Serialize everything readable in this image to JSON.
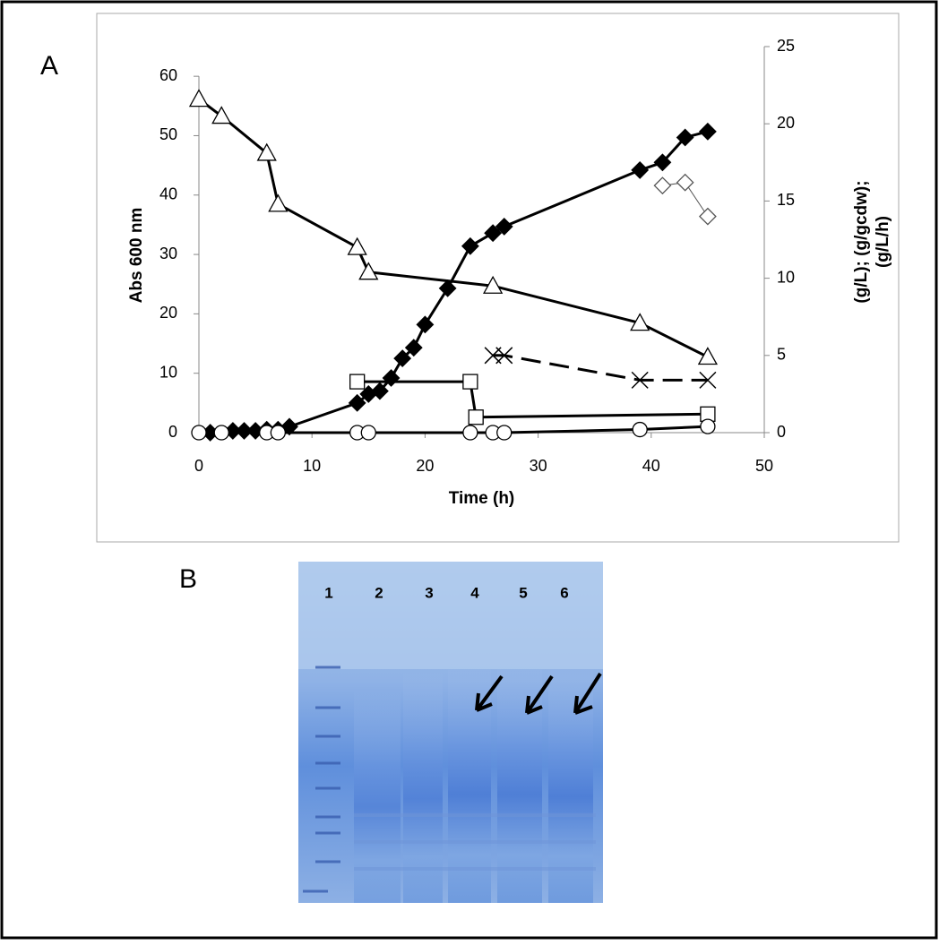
{
  "panels": [
    "A",
    "B"
  ],
  "chart_data": {
    "type": "line",
    "xlabel": "Time (h)",
    "ylabel": "Abs 600 nm",
    "y2label": [
      "(g/L); (g/gcdw);",
      "(g/L/h)"
    ],
    "xlim": [
      0,
      50
    ],
    "xticks": [
      0,
      10,
      20,
      30,
      40,
      50
    ],
    "ylim": [
      0,
      65
    ],
    "yticks": [
      0,
      10,
      20,
      30,
      40,
      50,
      60
    ],
    "y2lim": [
      0,
      25
    ],
    "y2ticks": [
      0,
      5,
      10,
      15,
      20,
      25
    ],
    "series": [
      {
        "marker": "diamond",
        "fill": "#000000",
        "color": "#000000",
        "line": "solid",
        "axis": "y",
        "x": [
          1,
          3,
          4,
          5,
          6,
          7,
          8,
          14,
          15,
          16,
          17,
          18,
          19,
          20,
          22,
          24,
          26,
          27,
          39,
          41,
          43,
          45
        ],
        "values": [
          0,
          0.3,
          0.3,
          0.3,
          0.5,
          0.5,
          1,
          5,
          6.5,
          7,
          9.2,
          12.5,
          14.3,
          18.2,
          24.3,
          31.4,
          33.6,
          34.7,
          44.2,
          45.5,
          49.7,
          50.7
        ]
      },
      {
        "marker": "triangle",
        "fill": "#ffffff",
        "color": "#000000",
        "line": "solid",
        "axis": "y2",
        "x": [
          0,
          2,
          6,
          7,
          14,
          15,
          26,
          39,
          45
        ],
        "values": [
          21.6,
          20.5,
          18.1,
          14.8,
          12,
          10.4,
          9.5,
          7.1,
          4.9
        ]
      },
      {
        "marker": "square",
        "fill": "#ffffff",
        "color": "#000000",
        "line": "solid",
        "axis": "y2",
        "x": [
          14,
          24,
          24.5,
          45
        ],
        "values": [
          3.3,
          3.3,
          1,
          1.2
        ]
      },
      {
        "marker": "circle",
        "fill": "#ffffff",
        "color": "#000000",
        "line": "solid",
        "axis": "y2",
        "x": [
          0,
          2,
          6,
          7,
          14,
          15,
          24,
          26,
          27,
          39,
          45
        ],
        "values": [
          0,
          0,
          0,
          0,
          0,
          0,
          0,
          0,
          0,
          0.2,
          0.4
        ]
      },
      {
        "marker": "cross",
        "fill": "none",
        "color": "#000000",
        "line": "dashed",
        "axis": "y2",
        "x": [
          26,
          27,
          39,
          45
        ],
        "values": [
          5,
          5,
          3.4,
          3.4
        ]
      },
      {
        "marker": "diamond",
        "fill": "#ffffff",
        "color": "#555555",
        "line": "thin",
        "axis": "y2",
        "x": [
          41,
          43,
          45
        ],
        "values": [
          16,
          16.2,
          14
        ]
      }
    ]
  },
  "gel": {
    "lanes": [
      "1",
      "2",
      "3",
      "4",
      "5",
      "6"
    ]
  }
}
